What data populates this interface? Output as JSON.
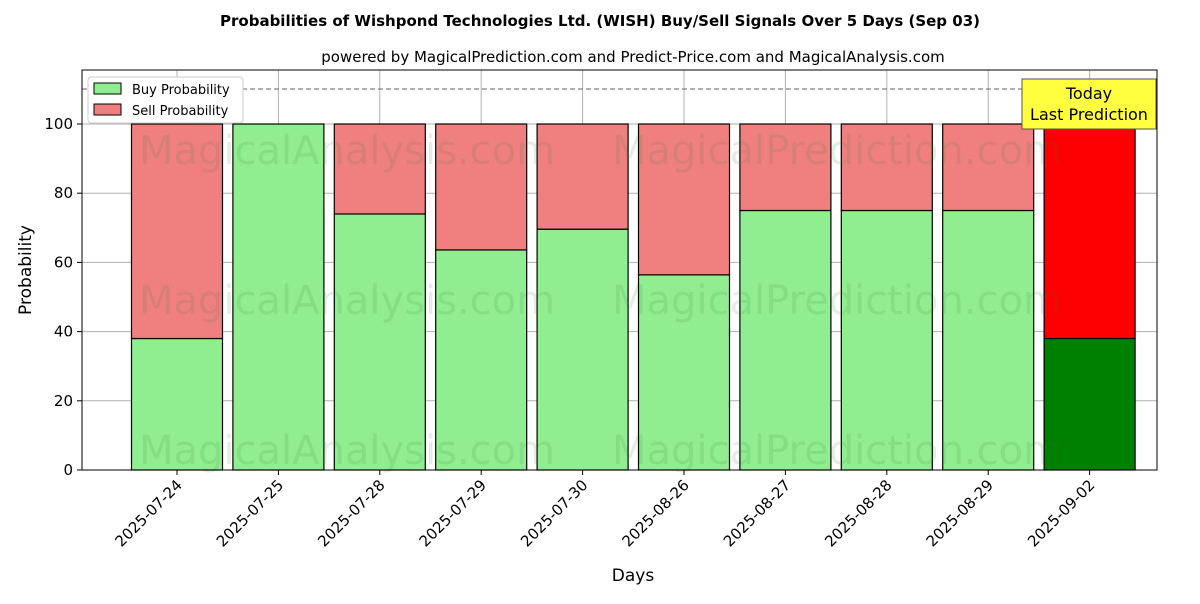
{
  "chart_data": {
    "type": "bar",
    "stacked": true,
    "title": "Probabilities of Wishpond Technologies Ltd. (WISH) Buy/Sell Signals Over 5 Days (Sep 03)",
    "subtitle": "powered by MagicalPrediction.com and Predict-Price.com and MagicalAnalysis.com",
    "xlabel": "Days",
    "ylabel": "Probability",
    "ylim": [
      0,
      116
    ],
    "yticks": [
      0,
      20,
      40,
      60,
      80,
      100
    ],
    "grid": true,
    "legend_position": "top-left",
    "categories": [
      "2025-07-24",
      "2025-07-25",
      "2025-07-28",
      "2025-07-29",
      "2025-07-30",
      "2025-08-26",
      "2025-08-27",
      "2025-08-28",
      "2025-08-29",
      "2025-09-02"
    ],
    "series": [
      {
        "name": "Buy Probability",
        "color": "#90ee90",
        "values": [
          38,
          100,
          74,
          63.6,
          69.6,
          56.4,
          75,
          75,
          75,
          38
        ]
      },
      {
        "name": "Sell Probability",
        "color": "#f08080",
        "values": [
          62,
          0,
          26,
          36.4,
          30.4,
          43.6,
          25,
          25,
          25,
          62
        ]
      }
    ],
    "highlight": {
      "index": 9,
      "buy_color": "#008000",
      "sell_color": "#ff0000"
    },
    "reference_line": 110,
    "annotation": {
      "line1": "Today",
      "line2": "Last Prediction",
      "color": "#ffff40"
    },
    "watermarks": [
      "MagicalAnalysis.com",
      "MagicalPrediction.com"
    ]
  }
}
